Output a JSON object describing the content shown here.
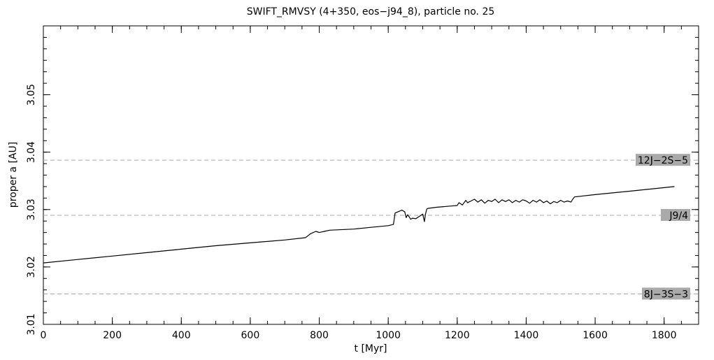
{
  "chart_data": {
    "type": "line",
    "title": "SWIFT_RMVSY (4+350, eos−j94_8), particle no. 25",
    "xlabel": "t [Myr]",
    "ylabel": "proper a [AU]",
    "xlim": [
      0,
      1900
    ],
    "ylim": [
      3.01,
      3.062
    ],
    "x_ticks": [
      0,
      200,
      400,
      600,
      800,
      1000,
      1200,
      1400,
      1600,
      1800
    ],
    "y_ticks": [
      3.01,
      3.02,
      3.03,
      3.04,
      3.05
    ],
    "x_tick_labels": [
      "0",
      "200",
      "400",
      "600",
      "800",
      "1000",
      "1200",
      "1400",
      "1600",
      "1800"
    ],
    "y_tick_labels": [
      "3.01",
      "3.02",
      "3.03",
      "3.04",
      "3.05"
    ],
    "grid": false,
    "legend": "none",
    "series": [
      {
        "color": "#000000",
        "x": [
          0,
          100,
          200,
          300,
          400,
          500,
          600,
          700,
          760,
          775,
          790,
          800,
          815,
          830,
          900,
          950,
          1000,
          1015,
          1020,
          1040,
          1048,
          1052,
          1056,
          1060,
          1065,
          1070,
          1080,
          1090,
          1100,
          1105,
          1108,
          1112,
          1115,
          1140,
          1180,
          1200,
          1205,
          1215,
          1225,
          1230,
          1240,
          1250,
          1260,
          1270,
          1280,
          1290,
          1300,
          1310,
          1320,
          1330,
          1340,
          1350,
          1360,
          1370,
          1380,
          1390,
          1400,
          1410,
          1420,
          1430,
          1440,
          1450,
          1460,
          1470,
          1480,
          1490,
          1500,
          1510,
          1520,
          1530,
          1535,
          1540,
          1600,
          1700,
          1830
        ],
        "y": [
          3.0207,
          3.0213,
          3.0219,
          3.0225,
          3.0231,
          3.0237,
          3.0242,
          3.0247,
          3.0251,
          3.0258,
          3.0262,
          3.026,
          3.0262,
          3.0264,
          3.0266,
          3.0269,
          3.0272,
          3.0274,
          3.0294,
          3.0299,
          3.0296,
          3.0286,
          3.0291,
          3.0288,
          3.0283,
          3.0285,
          3.0284,
          3.0288,
          3.0292,
          3.0279,
          3.0292,
          3.0301,
          3.0302,
          3.0304,
          3.0306,
          3.0307,
          3.0312,
          3.0308,
          3.0316,
          3.0312,
          3.0315,
          3.0318,
          3.0313,
          3.0317,
          3.0311,
          3.0316,
          3.0314,
          3.0318,
          3.0312,
          3.0317,
          3.0314,
          3.0317,
          3.0312,
          3.0316,
          3.0313,
          3.0317,
          3.0315,
          3.0311,
          3.0316,
          3.0313,
          3.0317,
          3.0312,
          3.0315,
          3.031,
          3.0314,
          3.0312,
          3.0316,
          3.0313,
          3.0315,
          3.0313,
          3.0318,
          3.0322,
          3.0326,
          3.0332,
          3.034
        ]
      }
    ],
    "resonances": [
      {
        "label": "12J−2S−5",
        "a": 3.0386
      },
      {
        "label": "J9/4",
        "a": 3.029
      },
      {
        "label": "8J−3S−3",
        "a": 3.0153
      }
    ],
    "colors": {
      "axes": "#000000",
      "resonance_line": "#aaaaaa",
      "label_box": "#aaaaaa"
    }
  }
}
